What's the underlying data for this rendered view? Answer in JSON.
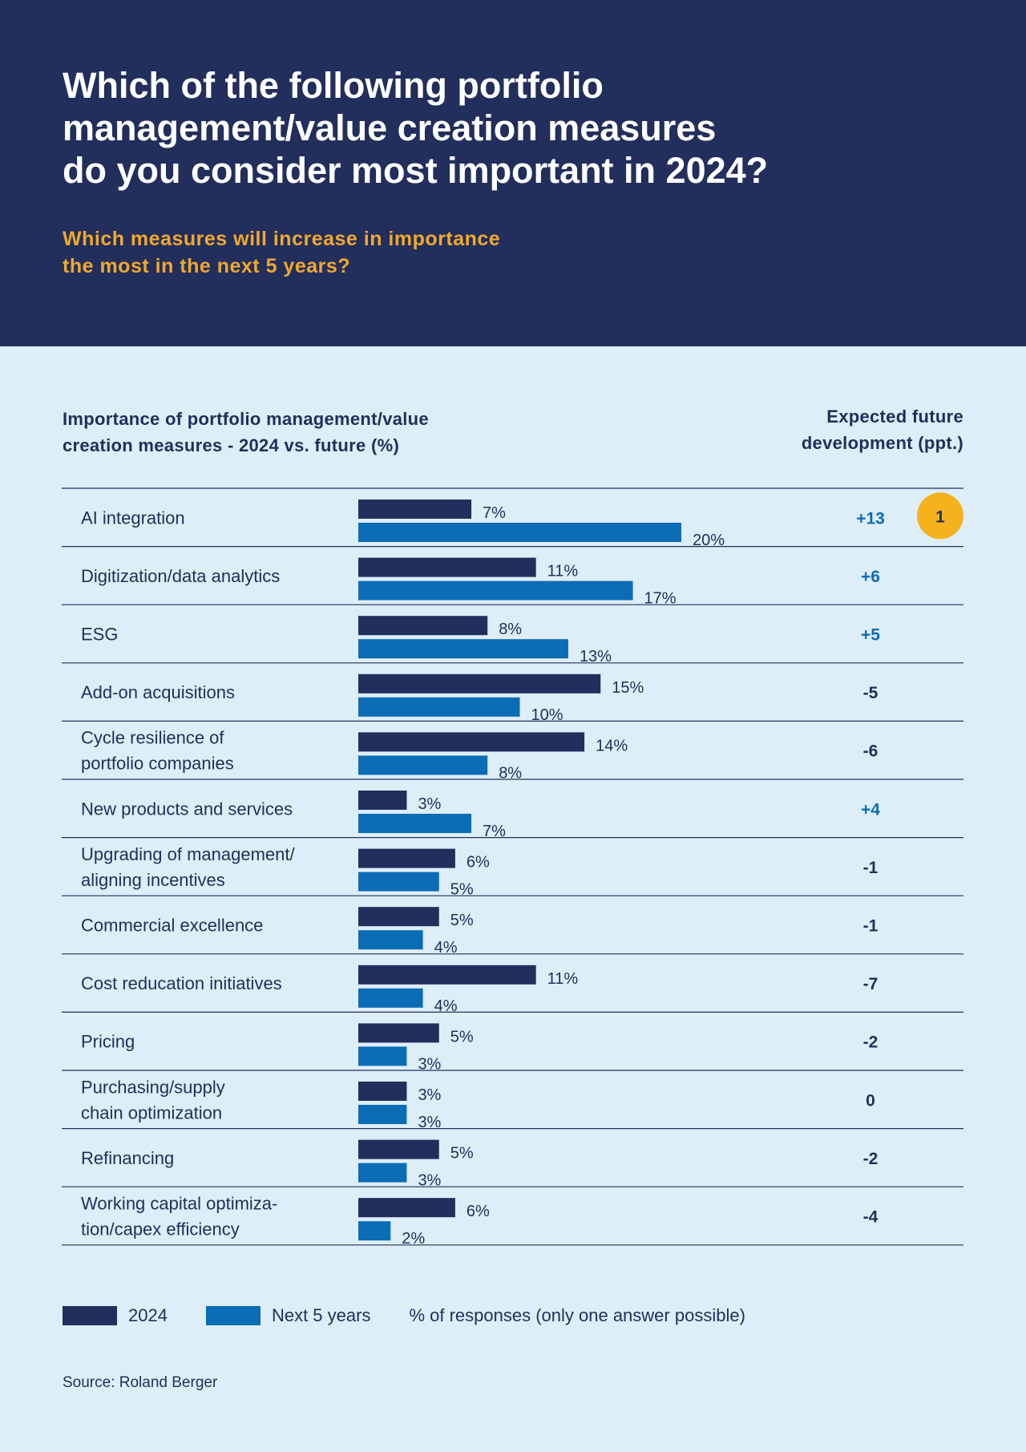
{
  "header": {
    "title": "Which of the following portfolio\nmanagement/value creation measures\ndo you consider most important in 2024?",
    "subtitle": "Which measures will increase in importance\nthe most in the next 5 years?"
  },
  "chart_data": {
    "type": "bar",
    "title": "Importance of portfolio management/value\ncreation measures - 2024 vs. future (%)",
    "right_column_title": "Expected future\ndevelopment (ppt.)",
    "categories": [
      [
        "AI integration"
      ],
      [
        "Digitization/data analytics"
      ],
      [
        "ESG"
      ],
      [
        "Add-on acquisitions"
      ],
      [
        "Cycle resilience of",
        "portfolio companies"
      ],
      [
        "New products and services"
      ],
      [
        "Upgrading of management/",
        "aligning incentives"
      ],
      [
        "Commercial excellence"
      ],
      [
        "Cost reducation initiatives"
      ],
      [
        "Pricing"
      ],
      [
        "Purchasing/supply",
        "chain optimization"
      ],
      [
        "Refinancing"
      ],
      [
        "Working capital optimiza-",
        "tion/capex efficiency"
      ]
    ],
    "series": [
      {
        "name": "2024",
        "color": "#222e5c",
        "values": [
          7,
          11,
          8,
          15,
          14,
          3,
          6,
          5,
          11,
          5,
          3,
          5,
          6
        ]
      },
      {
        "name": "Next 5 years",
        "color": "#0c6cb6",
        "values": [
          20,
          17,
          13,
          10,
          8,
          7,
          5,
          4,
          4,
          3,
          3,
          3,
          2
        ]
      }
    ],
    "value_suffix": "%",
    "expected_development": [
      "+13",
      "+6",
      "+5",
      "-5",
      "-6",
      "+4",
      "-1",
      "-1",
      "-7",
      "-2",
      "0",
      "-2",
      "-4"
    ],
    "rank_badges": [
      {
        "row": 0,
        "label": "1",
        "color": "#f5b21d"
      }
    ],
    "legend_position": "bottom-left"
  },
  "legend": {
    "series_2024": "2024",
    "series_next": "Next 5 years",
    "note": "% of responses (only one answer possible)"
  },
  "source": "Source: Roland Berger"
}
